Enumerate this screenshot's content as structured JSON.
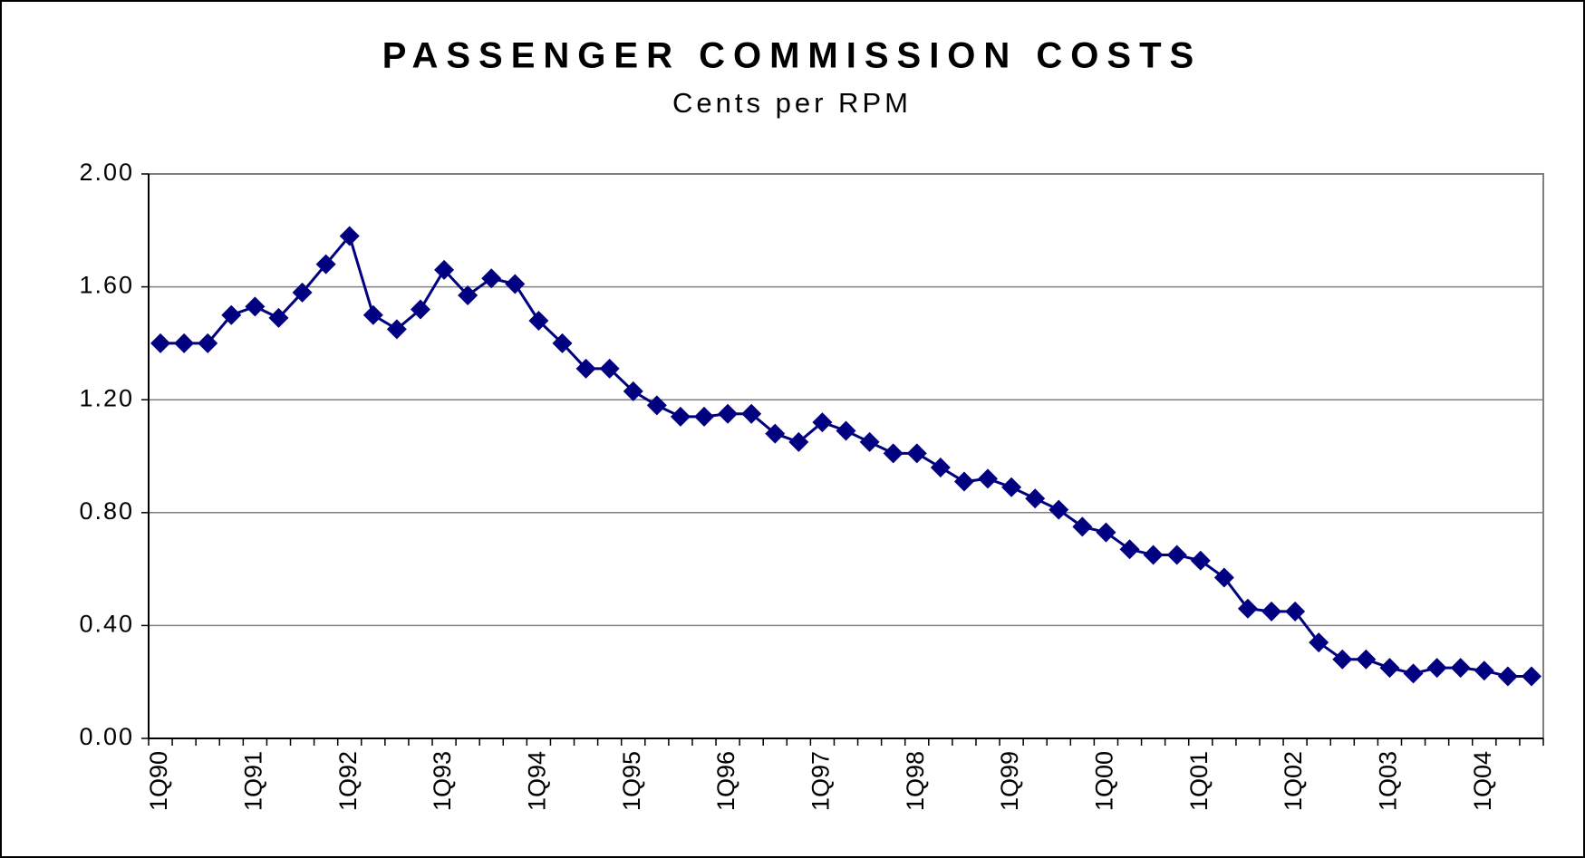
{
  "chart_data": {
    "type": "line",
    "title": "PASSENGER COMMISSION COSTS",
    "subtitle": "Cents per RPM",
    "categories": [
      "1Q90",
      null,
      null,
      null,
      "1Q91",
      null,
      null,
      null,
      "1Q92",
      null,
      null,
      null,
      "1Q93",
      null,
      null,
      null,
      "1Q94",
      null,
      null,
      null,
      "1Q95",
      null,
      null,
      null,
      "1Q96",
      null,
      null,
      null,
      "1Q97",
      null,
      null,
      null,
      "1Q98",
      null,
      null,
      null,
      "1Q99",
      null,
      null,
      null,
      "1Q00",
      null,
      null,
      null,
      "1Q01",
      null,
      null,
      null,
      "1Q02",
      null,
      null,
      null,
      "1Q03",
      null,
      null,
      null,
      "1Q04",
      null,
      null
    ],
    "series": [
      {
        "color": "#000080",
        "values": [
          1.4,
          1.4,
          1.4,
          1.5,
          1.53,
          1.49,
          1.58,
          1.68,
          1.78,
          1.5,
          1.45,
          1.52,
          1.66,
          1.57,
          1.63,
          1.61,
          1.48,
          1.4,
          1.31,
          1.31,
          1.23,
          1.18,
          1.14,
          1.14,
          1.15,
          1.15,
          1.08,
          1.05,
          1.12,
          1.09,
          1.05,
          1.01,
          1.01,
          0.96,
          0.91,
          0.92,
          0.89,
          0.85,
          0.81,
          0.75,
          0.73,
          0.67,
          0.65,
          0.65,
          0.63,
          0.57,
          0.46,
          0.45,
          0.45,
          0.34,
          0.28,
          0.28,
          0.25,
          0.23,
          0.25,
          0.25,
          0.24,
          0.22,
          0.22
        ]
      }
    ],
    "ylim": [
      0,
      2
    ],
    "yticks": [
      {
        "value": 0,
        "label": "0.00"
      },
      {
        "value": 0.4,
        "label": "0.40"
      },
      {
        "value": 0.8,
        "label": "0.80"
      },
      {
        "value": 1.2,
        "label": "1.20"
      },
      {
        "value": 1.6,
        "label": "1.60"
      },
      {
        "value": 2,
        "label": "2.00"
      }
    ],
    "grid": true
  }
}
